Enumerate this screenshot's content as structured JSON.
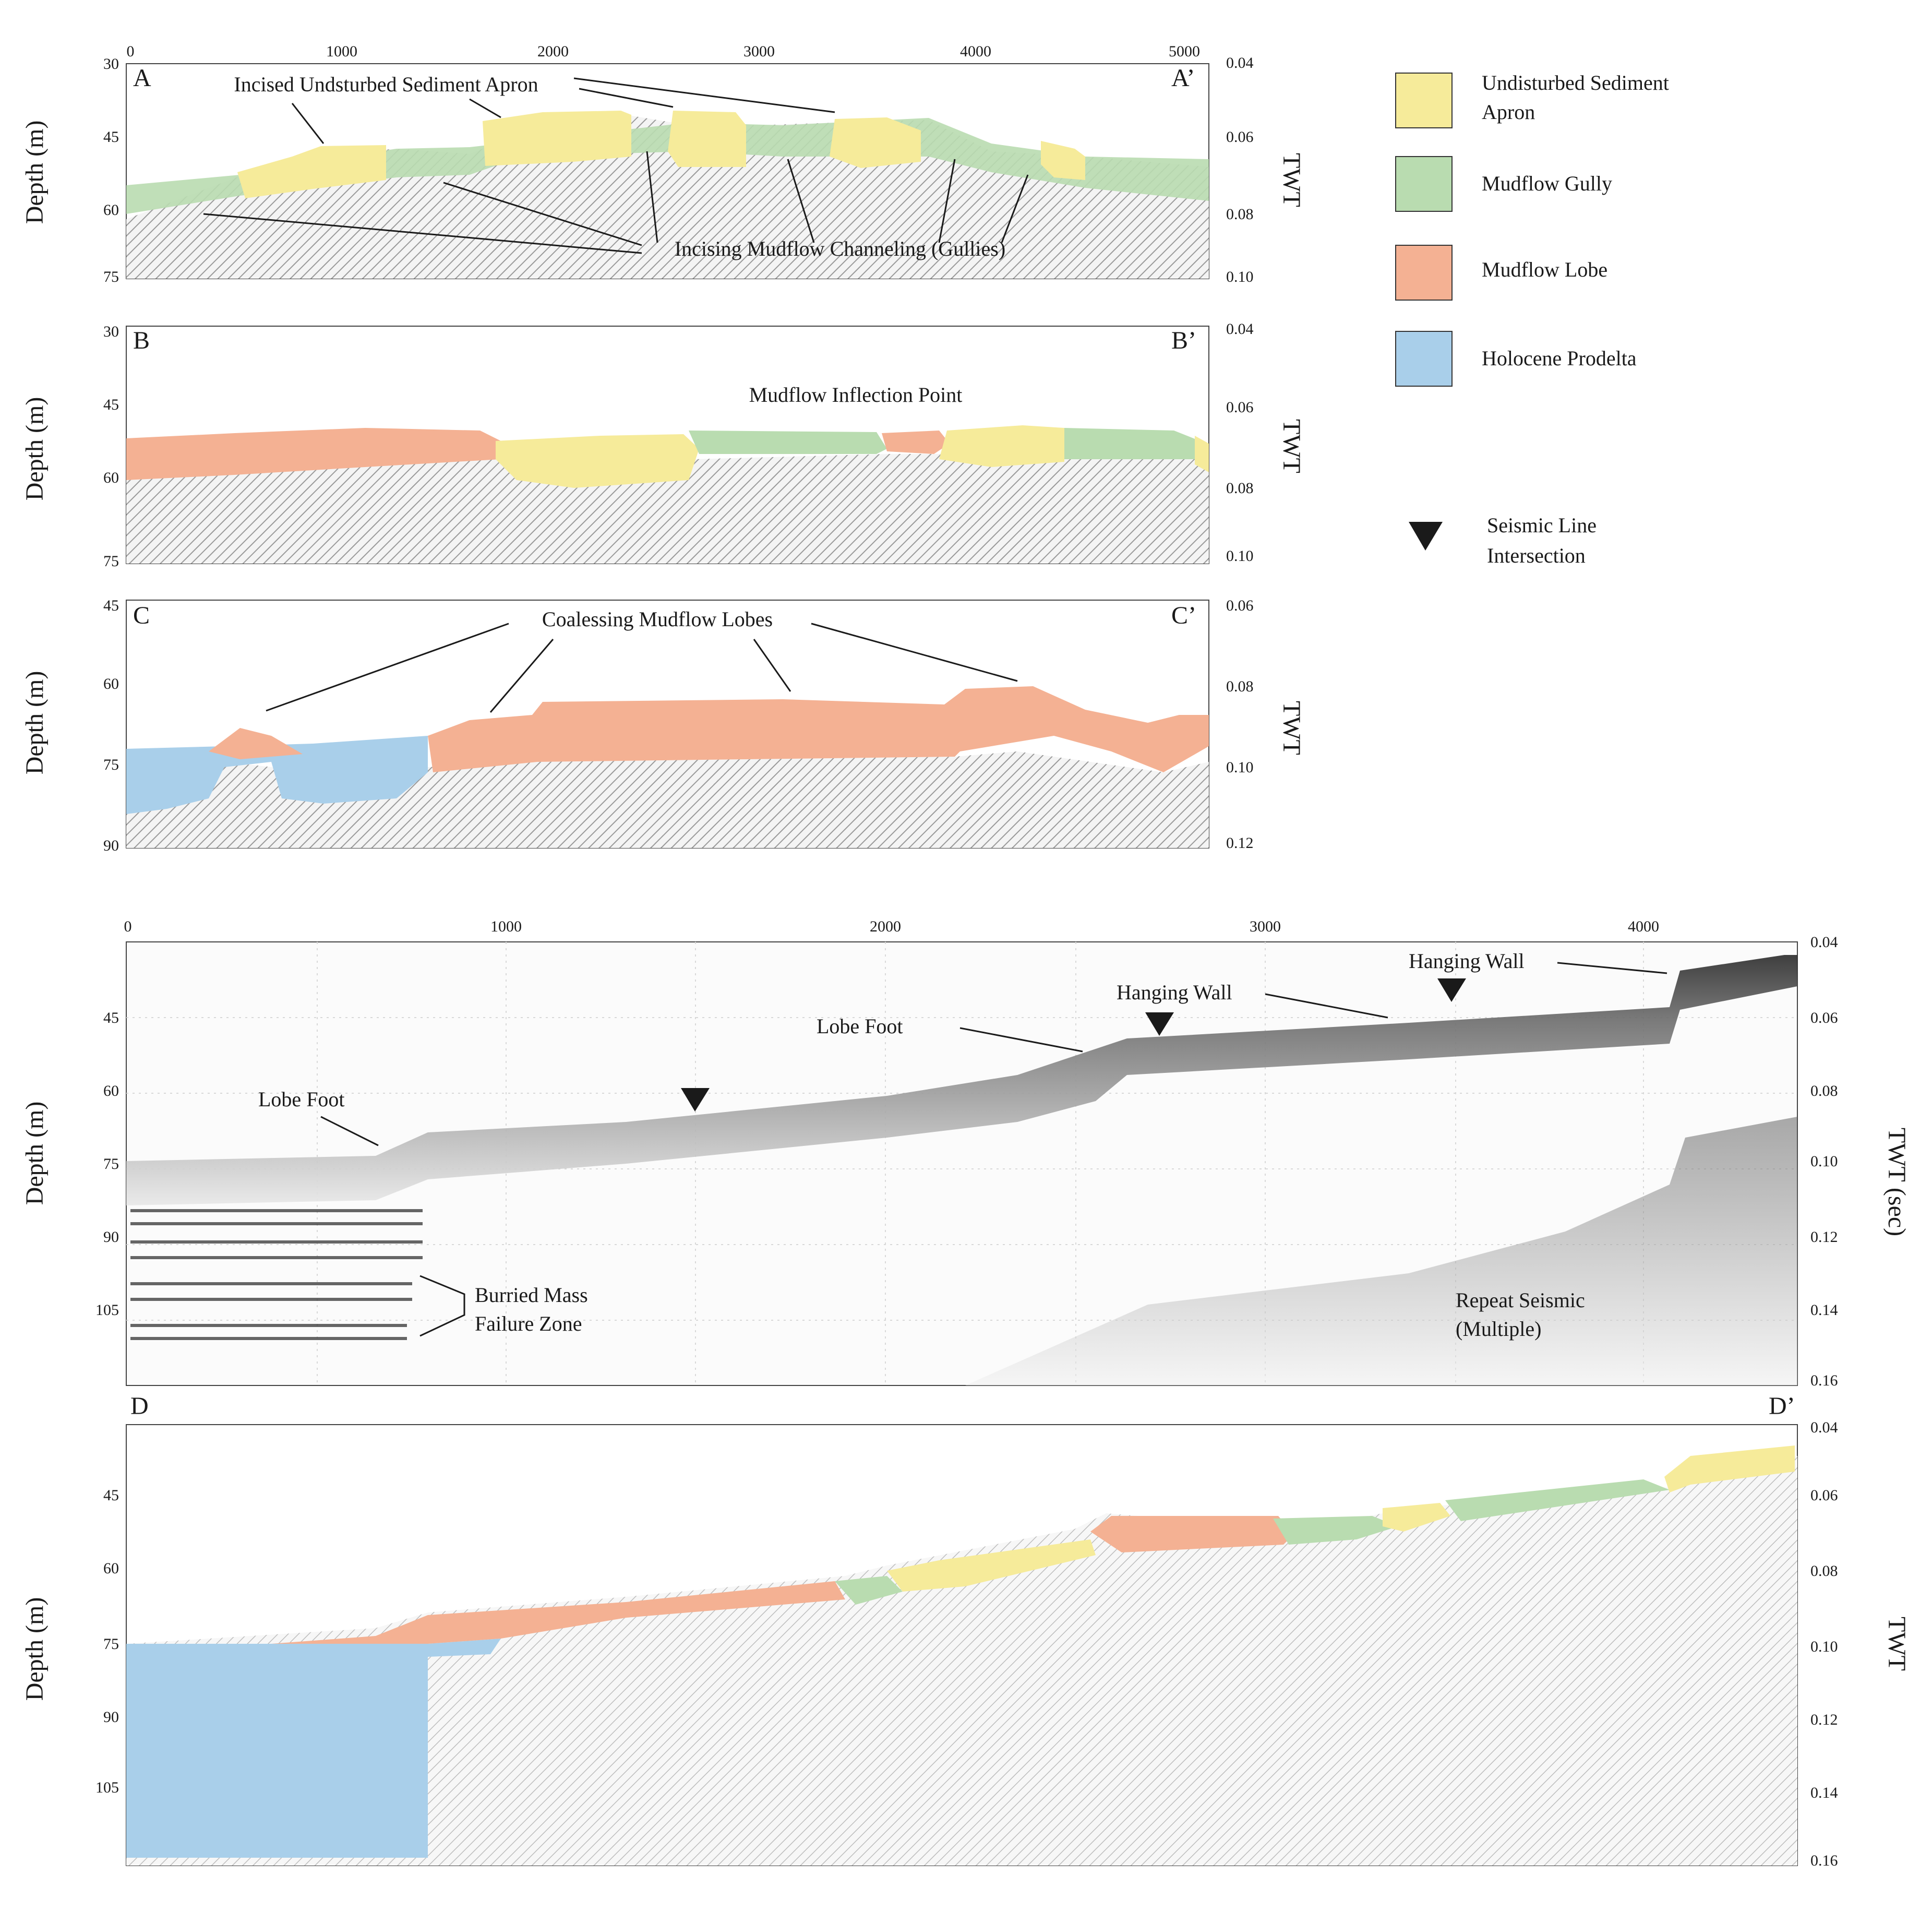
{
  "panels": [
    {
      "id": "A",
      "corner_left": "A",
      "corner_right": "A’",
      "y_label": "Depth (m)",
      "right_label": "TWT",
      "depth_ticks": [
        "30",
        "45",
        "60",
        "75"
      ],
      "twt_ticks": [
        "0.04",
        "0.06",
        "0.08",
        "0.10"
      ],
      "distance_ticks": [
        "0",
        "1000",
        "2000",
        "3000",
        "4000",
        "5000"
      ],
      "annotations": [
        "Incised Undsturbed Sediment Apron",
        "Incising Mudflow Channeling (Gullies)"
      ]
    },
    {
      "id": "B",
      "corner_left": "B",
      "corner_right": "B’",
      "y_label": "Depth (m)",
      "right_label": "TWT",
      "depth_ticks": [
        "30",
        "45",
        "60",
        "75"
      ],
      "twt_ticks": [
        "0.04",
        "0.06",
        "0.08",
        "0.10"
      ],
      "annotations": [
        "Mudflow Inflection Point"
      ]
    },
    {
      "id": "C",
      "corner_left": "C",
      "corner_right": "C’",
      "y_label": "Depth (m)",
      "right_label": "TWT",
      "depth_ticks": [
        "45",
        "60",
        "75",
        "90"
      ],
      "twt_ticks": [
        "0.06",
        "0.08",
        "0.10",
        "0.12"
      ],
      "annotations": [
        "Coalessing Mudflow Lobes"
      ]
    },
    {
      "id": "D_raw",
      "y_label": "Depth (m)",
      "right_label": "TWT (sec)",
      "depth_ticks": [
        "45",
        "60",
        "75",
        "90",
        "105"
      ],
      "twt_ticks": [
        "0.04",
        "0.06",
        "0.08",
        "0.10",
        "0.12",
        "0.14",
        "0.16"
      ],
      "distance_ticks": [
        "0",
        "1000",
        "2000",
        "3000",
        "4000"
      ],
      "annotations": [
        "Lobe Foot",
        "Lobe Foot",
        "Hanging Wall",
        "Hanging Wall",
        "Burried Mass",
        "Failure Zone",
        "Repeat Seismic",
        "(Multiple)"
      ]
    },
    {
      "id": "D",
      "corner_left": "D",
      "corner_right": "D’",
      "y_label": "Depth (m)",
      "right_label": "TWT",
      "depth_ticks": [
        "45",
        "60",
        "75",
        "90",
        "105"
      ],
      "twt_ticks": [
        "0.04",
        "0.06",
        "0.08",
        "0.10",
        "0.12",
        "0.14",
        "0.16"
      ]
    }
  ],
  "legend": {
    "items": [
      {
        "line1": "Undisturbed Sediment",
        "line2": "Apron",
        "color": "#f6eb9a"
      },
      {
        "line1": "Mudflow Gully",
        "line2": "",
        "color": "#b9dcb0"
      },
      {
        "line1": "Mudflow Lobe",
        "line2": "",
        "color": "#f4b193"
      },
      {
        "line1": "Holocene Prodelta",
        "line2": "",
        "color": "#a9cfea"
      }
    ],
    "marker_line1": "Seismic Line",
    "marker_line2": "Intersection"
  },
  "colors": {
    "apron": "#f6eb9a",
    "gully": "#b9dcb0",
    "lobe": "#f4b193",
    "prodelta": "#a9cfea",
    "marker": "#1a1a1a"
  }
}
